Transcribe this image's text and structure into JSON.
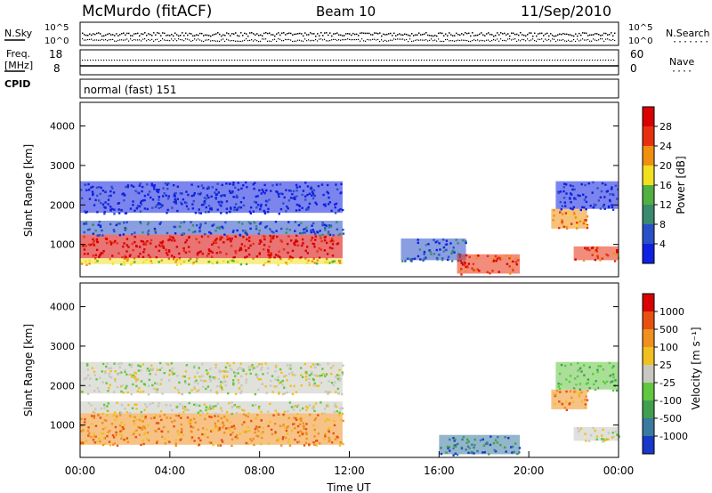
{
  "header": {
    "station": "McMurdo (fitACF)",
    "beam": "Beam 10",
    "date": "11/Sep/2010"
  },
  "noise_panel": {
    "left_label": "N.Sky",
    "right_label": "N.Search",
    "right_dots": "·······",
    "left_ticks": [
      "10^5",
      "10^0"
    ],
    "right_ticks": [
      "10^5",
      "10^0"
    ]
  },
  "freq_panel": {
    "left_label_1": "Freq.",
    "left_label_2": "[MHz]",
    "left_ticks": [
      "18",
      "8"
    ],
    "right_label": "Nave",
    "right_dots": "····",
    "right_ticks": [
      "60",
      "0"
    ]
  },
  "cpid_panel": {
    "label": "CPID",
    "mode": "normal (fast) 151"
  },
  "chart_data": [
    {
      "type": "heatmap",
      "quantity": "Power",
      "ylabel": "Slant Range [km]",
      "y_ticks": [
        "1000",
        "2000",
        "3000",
        "4000"
      ],
      "ylim": [
        180,
        4600
      ],
      "colorbar_label": "Power [dB]",
      "colorbar_ticks": [
        "4",
        "8",
        "12",
        "16",
        "20",
        "24",
        "28"
      ],
      "colorbar_colors": [
        "#1020e0",
        "#2a50c8",
        "#3a8a70",
        "#50b040",
        "#f0e020",
        "#f09010",
        "#e83010",
        "#d80000"
      ],
      "regions": [
        {
          "t0": 0.0,
          "t1": 11.7,
          "r0": 650,
          "r1": 1250,
          "level": 7
        },
        {
          "t0": 0.0,
          "t1": 11.7,
          "r0": 500,
          "r1": 650,
          "level": 4
        },
        {
          "t0": 0.0,
          "t1": 11.7,
          "r0": 1250,
          "r1": 1600,
          "level": 1
        },
        {
          "t0": 0.0,
          "t1": 11.7,
          "r0": 1800,
          "r1": 2600,
          "level": 0
        },
        {
          "t0": 14.3,
          "t1": 17.2,
          "r0": 600,
          "r1": 1150,
          "level": 1
        },
        {
          "t0": 16.8,
          "t1": 19.6,
          "r0": 260,
          "r1": 750,
          "level": 6
        },
        {
          "t0": 21.0,
          "t1": 22.6,
          "r0": 1400,
          "r1": 1900,
          "level": 5
        },
        {
          "t0": 21.2,
          "t1": 24.0,
          "r0": 1900,
          "r1": 2600,
          "level": 0
        },
        {
          "t0": 22.0,
          "t1": 24.0,
          "r0": 600,
          "r1": 950,
          "level": 6
        }
      ]
    },
    {
      "type": "heatmap",
      "quantity": "Velocity",
      "ylabel": "Slant Range [km]",
      "y_ticks": [
        "1000",
        "2000",
        "3000",
        "4000"
      ],
      "ylim": [
        180,
        4600
      ],
      "xlabel": "Time UT",
      "x_ticks": [
        "00:00",
        "04:00",
        "08:00",
        "12:00",
        "16:00",
        "20:00",
        "00:00"
      ],
      "xlim": [
        0,
        24
      ],
      "colorbar_label": "Velocity [m s⁻¹]",
      "colorbar_ticks": [
        "1000",
        "500",
        "100",
        "25",
        "-25",
        "-100",
        "-500",
        "-1000"
      ],
      "colorbar_colors": [
        "#1838c8",
        "#3a7aa0",
        "#40a050",
        "#60c840",
        "#c8c8c0",
        "#f0c020",
        "#f09020",
        "#e85010",
        "#d80000"
      ],
      "regions": [
        {
          "t0": 0.0,
          "t1": 11.7,
          "r0": 500,
          "r1": 1300,
          "level": 6
        },
        {
          "t0": 0.0,
          "t1": 11.7,
          "r0": 1300,
          "r1": 1600,
          "level": 4
        },
        {
          "t0": 0.0,
          "t1": 11.7,
          "r0": 1800,
          "r1": 2600,
          "level": 4
        },
        {
          "t0": 16.0,
          "t1": 19.6,
          "r0": 260,
          "r1": 750,
          "level": 1
        },
        {
          "t0": 21.0,
          "t1": 22.6,
          "r0": 1400,
          "r1": 1900,
          "level": 6
        },
        {
          "t0": 21.2,
          "t1": 24.0,
          "r0": 1900,
          "r1": 2600,
          "level": 3
        },
        {
          "t0": 22.0,
          "t1": 24.0,
          "r0": 600,
          "r1": 950,
          "level": 4
        }
      ]
    }
  ]
}
